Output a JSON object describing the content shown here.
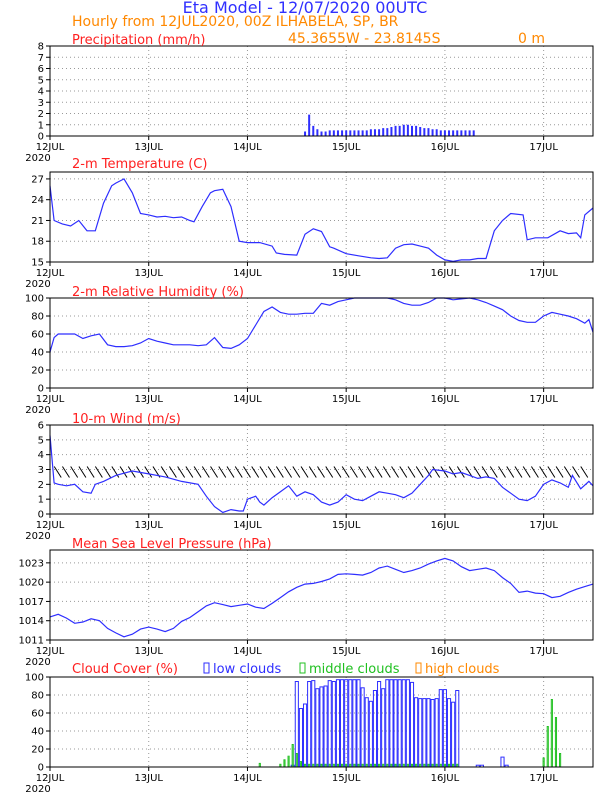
{
  "header": {
    "title": "Eta Model - 12/07/2020 00UTC",
    "subtitle": "Hourly from 12JUL2020, 00Z  ILHABELA, SP, BR",
    "coords": "45.3655W - 23.8145S",
    "altitude": "0   m"
  },
  "colors": {
    "title": "#3030ff",
    "subtitle": "#ff8800",
    "panel_title": "#ff2020",
    "series": "#2e2eff",
    "mid": "#20c020",
    "high": "#ff8800",
    "wind_barb": "#000000"
  },
  "x_axis": {
    "range_hours": [
      0,
      132
    ],
    "tick_labels": [
      "12JUL",
      "13JUL",
      "14JUL",
      "15JUL",
      "16JUL",
      "17JUL"
    ],
    "tick_hours": [
      0,
      24,
      48,
      72,
      96,
      120
    ],
    "year_label": "2020"
  },
  "chart_data": [
    {
      "type": "bar",
      "title": "Precipitation (mm/h)",
      "ylim": [
        0,
        8
      ],
      "yticks": [
        "0",
        "1",
        "2",
        "3",
        "4",
        "5",
        "6",
        "7",
        "8"
      ],
      "x_hours": [
        62,
        63,
        64,
        65,
        66,
        67,
        68,
        69,
        70,
        71,
        72,
        73,
        74,
        75,
        76,
        77,
        78,
        79,
        80,
        81,
        82,
        83,
        84,
        85,
        86,
        87,
        88,
        89,
        90,
        91,
        92,
        93,
        94,
        95,
        96,
        97,
        98,
        99,
        100,
        101,
        102,
        103
      ],
      "values": [
        0.4,
        1.9,
        0.9,
        0.6,
        0.4,
        0.4,
        0.5,
        0.5,
        0.5,
        0.5,
        0.5,
        0.5,
        0.5,
        0.5,
        0.5,
        0.5,
        0.6,
        0.6,
        0.6,
        0.7,
        0.7,
        0.8,
        0.9,
        0.9,
        1.0,
        1.0,
        0.9,
        0.9,
        0.8,
        0.7,
        0.7,
        0.6,
        0.6,
        0.5,
        0.5,
        0.5,
        0.5,
        0.5,
        0.5,
        0.5,
        0.5,
        0.5
      ]
    },
    {
      "type": "line",
      "title": "2-m Temperature (C)",
      "ylim": [
        15,
        28
      ],
      "yticks": [
        "15",
        "18",
        "21",
        "24",
        "27"
      ],
      "x_hours": [
        0,
        1,
        3,
        5,
        7,
        9,
        11,
        13,
        15,
        16,
        18,
        20,
        22,
        24,
        26,
        28,
        30,
        32,
        34,
        35,
        37,
        39,
        40,
        42,
        44,
        46,
        48,
        51,
        54,
        55,
        57,
        60,
        62,
        64,
        66,
        68,
        69,
        72,
        75,
        78,
        80,
        82,
        84,
        86,
        88,
        90,
        92,
        94,
        96,
        98,
        100,
        102,
        104,
        106,
        108,
        110,
        112,
        115,
        116,
        118,
        121,
        124,
        126,
        128,
        129,
        130,
        132
      ],
      "values": [
        26.0,
        21.0,
        20.5,
        20.2,
        21.0,
        19.5,
        19.5,
        23.5,
        26.0,
        26.4,
        27.0,
        25.0,
        22.0,
        21.8,
        21.5,
        21.6,
        21.4,
        21.5,
        21.0,
        20.8,
        23.0,
        25.0,
        25.3,
        25.5,
        23.0,
        18.0,
        17.8,
        17.8,
        17.3,
        16.3,
        16.1,
        16.0,
        19.0,
        19.8,
        19.4,
        17.2,
        17.0,
        16.2,
        15.9,
        15.6,
        15.5,
        15.6,
        17.0,
        17.5,
        17.6,
        17.3,
        17.0,
        16.0,
        15.3,
        15.1,
        15.3,
        15.3,
        15.5,
        15.5,
        19.5,
        21.0,
        22.0,
        21.8,
        18.2,
        18.5,
        18.5,
        19.5,
        19.1,
        19.2,
        18.5,
        21.8,
        22.8
      ]
    },
    {
      "type": "line",
      "title": "2-m Relative Humidity (%)",
      "ylim": [
        0,
        100
      ],
      "yticks": [
        "0",
        "20",
        "40",
        "60",
        "80",
        "100"
      ],
      "x_hours": [
        0,
        1,
        2,
        4,
        6,
        8,
        10,
        12,
        14,
        16,
        18,
        20,
        22,
        24,
        26,
        28,
        30,
        32,
        34,
        36,
        38,
        40,
        42,
        44,
        46,
        48,
        50,
        52,
        54,
        56,
        58,
        60,
        62,
        64,
        66,
        68,
        70,
        72,
        74,
        76,
        78,
        80,
        82,
        84,
        86,
        88,
        90,
        92,
        94,
        96,
        98,
        100,
        102,
        104,
        106,
        108,
        110,
        112,
        114,
        116,
        118,
        120,
        122,
        124,
        126,
        128,
        130,
        131,
        132
      ],
      "values": [
        40,
        56,
        60,
        60,
        60,
        55,
        58,
        60,
        48,
        46,
        46,
        47,
        50,
        55,
        52,
        50,
        48,
        48,
        48,
        47,
        48,
        56,
        45,
        44,
        48,
        55,
        70,
        85,
        90,
        84,
        82,
        82,
        83,
        83,
        94,
        92,
        96,
        98,
        100,
        100,
        100,
        100,
        100,
        98,
        94,
        92,
        92,
        95,
        100,
        100,
        98,
        99,
        100,
        98,
        95,
        91,
        87,
        80,
        75,
        73,
        73,
        80,
        84,
        82,
        80,
        77,
        72,
        76,
        62
      ]
    },
    {
      "type": "line",
      "title": "10-m Wind (m/s)",
      "ylim": [
        0,
        6
      ],
      "yticks": [
        "0",
        "1",
        "2",
        "3",
        "4",
        "5",
        "6"
      ],
      "barb_level": 2.8,
      "x_hours": [
        0,
        1,
        2,
        4,
        6,
        8,
        10,
        11,
        13,
        16,
        20,
        24,
        28,
        32,
        36,
        38,
        40,
        42,
        44,
        46,
        47,
        48,
        49,
        50,
        51,
        52,
        54,
        56,
        58,
        60,
        62,
        64,
        66,
        68,
        70,
        72,
        74,
        76,
        78,
        80,
        82,
        84,
        86,
        88,
        90,
        92,
        93,
        96,
        98,
        100,
        102,
        104,
        106,
        108,
        110,
        112,
        114,
        116,
        118,
        120,
        122,
        124,
        126,
        127,
        129,
        131,
        132
      ],
      "values": [
        5.3,
        2.1,
        2.0,
        1.9,
        2.0,
        1.5,
        1.4,
        2.0,
        2.2,
        2.6,
        2.9,
        2.7,
        2.5,
        2.2,
        2.0,
        1.2,
        0.5,
        0.1,
        0.3,
        0.2,
        0.2,
        1.0,
        1.1,
        1.2,
        0.8,
        0.6,
        1.1,
        1.5,
        1.9,
        1.2,
        1.5,
        1.3,
        0.8,
        0.6,
        0.8,
        1.3,
        1.0,
        0.9,
        1.2,
        1.5,
        1.4,
        1.3,
        1.1,
        1.4,
        2.0,
        2.6,
        3.0,
        2.9,
        2.7,
        2.8,
        2.6,
        2.4,
        2.5,
        2.4,
        1.8,
        1.4,
        1.0,
        0.9,
        1.2,
        2.0,
        2.3,
        2.1,
        1.8,
        2.6,
        1.7,
        2.2,
        1.9
      ]
    },
    {
      "type": "line",
      "title": "Mean Sea Level Pressure (hPa)",
      "ylim": [
        1011,
        1025
      ],
      "yticks": [
        "1011",
        "1014",
        "1017",
        "1020",
        "1023"
      ],
      "x_hours": [
        0,
        2,
        4,
        6,
        8,
        10,
        12,
        14,
        16,
        18,
        20,
        22,
        24,
        26,
        28,
        30,
        32,
        34,
        36,
        38,
        40,
        42,
        44,
        46,
        48,
        50,
        52,
        54,
        56,
        58,
        60,
        62,
        64,
        66,
        68,
        70,
        72,
        74,
        76,
        78,
        80,
        82,
        84,
        86,
        88,
        90,
        92,
        94,
        96,
        98,
        100,
        102,
        104,
        106,
        108,
        110,
        112,
        114,
        116,
        118,
        120,
        122,
        124,
        126,
        128,
        130,
        132
      ],
      "values": [
        1014.6,
        1015.0,
        1014.4,
        1013.6,
        1013.8,
        1014.3,
        1014.0,
        1012.8,
        1012.1,
        1011.5,
        1011.9,
        1012.7,
        1013.0,
        1012.7,
        1012.3,
        1012.8,
        1013.9,
        1014.5,
        1015.4,
        1016.3,
        1016.8,
        1016.5,
        1016.2,
        1016.4,
        1016.6,
        1016.1,
        1015.9,
        1016.7,
        1017.6,
        1018.5,
        1019.2,
        1019.7,
        1019.8,
        1020.1,
        1020.5,
        1021.2,
        1021.3,
        1021.2,
        1021.1,
        1021.5,
        1022.2,
        1022.5,
        1022.0,
        1021.5,
        1021.8,
        1022.2,
        1022.8,
        1023.3,
        1023.7,
        1023.3,
        1022.4,
        1021.8,
        1022.0,
        1022.2,
        1021.8,
        1020.7,
        1019.8,
        1018.4,
        1018.6,
        1018.3,
        1018.2,
        1017.6,
        1017.8,
        1018.4,
        1018.9,
        1019.3,
        1019.7
      ]
    },
    {
      "type": "bar",
      "title": "Cloud Cover (%)",
      "ylim": [
        0,
        100
      ],
      "yticks": [
        "0",
        "20",
        "40",
        "60",
        "80",
        "100"
      ],
      "legend": [
        "low clouds",
        "middle clouds",
        "high clouds"
      ],
      "series": [
        {
          "name": "low clouds",
          "x_hours": [
            59,
            60,
            61,
            62,
            63,
            64,
            65,
            66,
            67,
            68,
            69,
            70,
            71,
            72,
            73,
            74,
            75,
            76,
            77,
            78,
            79,
            80,
            81,
            82,
            83,
            84,
            85,
            86,
            87,
            88,
            89,
            90,
            91,
            92,
            93,
            94,
            95,
            96,
            97,
            98,
            99,
            104,
            105,
            110,
            111
          ],
          "values": [
            2,
            95,
            65,
            70,
            95,
            96,
            87,
            89,
            90,
            96,
            95,
            97,
            97,
            97,
            97,
            97,
            97,
            88,
            77,
            73,
            85,
            95,
            87,
            97,
            97,
            97,
            97,
            97,
            97,
            94,
            77,
            76,
            76,
            76,
            75,
            76,
            86,
            86,
            76,
            72,
            85,
            2,
            2,
            11,
            2
          ]
        },
        {
          "name": "middle clouds",
          "x_hours": [
            51,
            56,
            57,
            58,
            59,
            60,
            61,
            62,
            63,
            64,
            65,
            66,
            67,
            68,
            69,
            70,
            71,
            72,
            73,
            74,
            75,
            76,
            77,
            78,
            79,
            80,
            81,
            82,
            83,
            84,
            85,
            86,
            87,
            88,
            89,
            90,
            91,
            92,
            93,
            94,
            95,
            96,
            97,
            98,
            99,
            120,
            121,
            122,
            123,
            124
          ],
          "values": [
            4,
            3,
            8,
            12,
            25,
            15,
            6,
            3,
            3,
            3,
            3,
            3,
            3,
            3,
            3,
            3,
            3,
            3,
            3,
            3,
            3,
            3,
            3,
            3,
            3,
            3,
            3,
            3,
            3,
            3,
            3,
            3,
            3,
            3,
            3,
            3,
            3,
            3,
            3,
            3,
            3,
            3,
            3,
            3,
            3,
            10,
            45,
            75,
            55,
            15
          ]
        },
        {
          "name": "high clouds",
          "x_hours": [],
          "values": []
        }
      ]
    }
  ]
}
